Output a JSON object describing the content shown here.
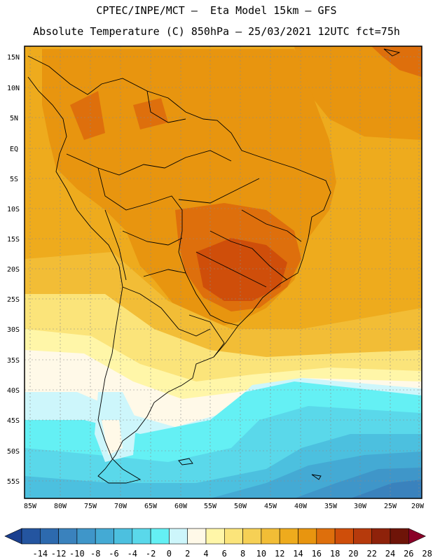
{
  "header": {
    "line1": "CPTEC/INPE/MCT –  Eta Model 15km – GFS",
    "line2": "Absolute Temperature (C) 850hPa – 25/03/2021 12UTC fct=75h"
  },
  "map": {
    "lat_labels": [
      "15N",
      "10N",
      "5N",
      "EQ",
      "5S",
      "10S",
      "15S",
      "20S",
      "25S",
      "30S",
      "35S",
      "40S",
      "45S",
      "50S",
      "55S"
    ],
    "lon_labels": [
      "85W",
      "80W",
      "75W",
      "70W",
      "65W",
      "60W",
      "55W",
      "50W",
      "45W",
      "40W",
      "35W",
      "30W",
      "25W",
      "20W"
    ]
  },
  "colorbar": {
    "labels": [
      "-14",
      "-12",
      "-10",
      "-8",
      "-6",
      "-4",
      "-2",
      "0",
      "2",
      "4",
      "6",
      "8",
      "10",
      "12",
      "14",
      "16",
      "18",
      "20",
      "22",
      "24",
      "26",
      "28"
    ],
    "colors": [
      "#1a3f8f",
      "#2455a0",
      "#2d6aae",
      "#3a82bd",
      "#3f96c9",
      "#44aad4",
      "#4cc0df",
      "#5ad8ea",
      "#64f0f4",
      "#cdf6fb",
      "#fff9e8",
      "#fff6a8",
      "#fbe47a",
      "#f6d055",
      "#f2bd36",
      "#eeab1d",
      "#e8950f",
      "#de6f0c",
      "#cf4e0a",
      "#b63a0c",
      "#8e220a",
      "#6e1408",
      "#8a0028"
    ]
  }
}
